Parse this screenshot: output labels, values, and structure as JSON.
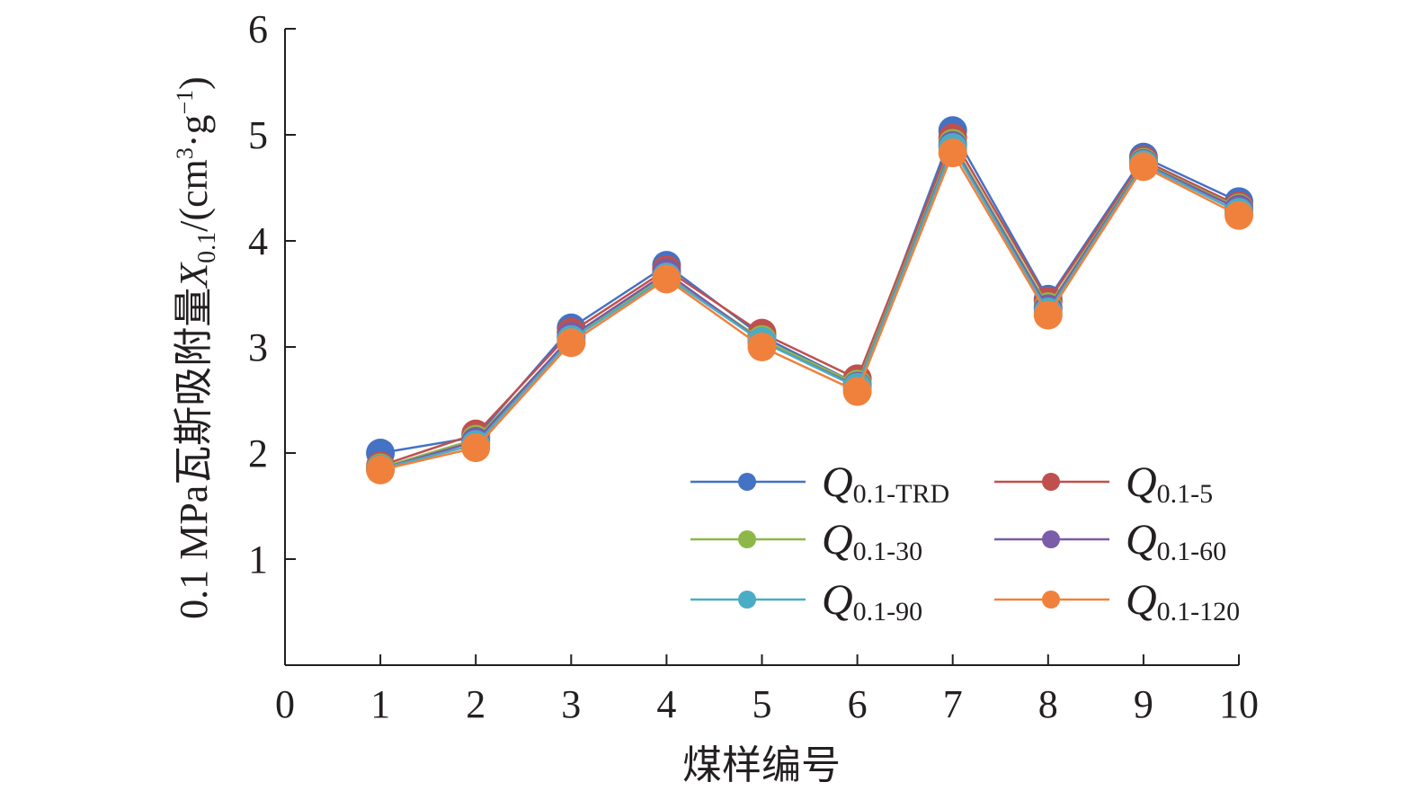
{
  "chart_data": {
    "type": "line",
    "ylabel_main": "0.1 MPa瓦斯吸附量",
    "ylabel_var": "X",
    "ylabel_sub": "0.1",
    "ylabel_unit_a": "/(cm",
    "ylabel_unit_sup3": "3",
    "ylabel_unit_b": "·g",
    "ylabel_unit_supneg": "−1",
    "ylabel_unit_c": ")",
    "xlabel": "煤样编号",
    "x": [
      1,
      2,
      3,
      4,
      5,
      6,
      7,
      8,
      9,
      10
    ],
    "x_ticks": [
      "0",
      "1",
      "2",
      "3",
      "4",
      "5",
      "6",
      "7",
      "8",
      "9",
      "10"
    ],
    "y_ticks": [
      "1",
      "2",
      "3",
      "4",
      "5",
      "6"
    ],
    "ylim": [
      0,
      6
    ],
    "grid": false,
    "legend_position": "bottom-right",
    "series": [
      {
        "name": "Q",
        "sub": "0.1-TRD",
        "color": "#4472c4",
        "values": [
          2.0,
          2.15,
          3.18,
          3.77,
          3.1,
          2.65,
          5.04,
          3.45,
          4.79,
          4.37
        ]
      },
      {
        "name": "Q",
        "sub": "0.1-5",
        "color": "#c0504d",
        "values": [
          1.88,
          2.18,
          3.14,
          3.73,
          3.13,
          2.7,
          4.97,
          3.43,
          4.76,
          4.33
        ]
      },
      {
        "name": "Q",
        "sub": "0.1-30",
        "color": "#8db849",
        "values": [
          1.86,
          2.13,
          3.09,
          3.68,
          3.07,
          2.65,
          4.92,
          3.38,
          4.74,
          4.31
        ]
      },
      {
        "name": "Q",
        "sub": "0.1-60",
        "color": "#7a5ca8",
        "values": [
          1.85,
          2.11,
          3.1,
          3.7,
          3.05,
          2.63,
          4.9,
          3.36,
          4.73,
          4.3
        ]
      },
      {
        "name": "Q",
        "sub": "0.1-90",
        "color": "#4bacc6",
        "values": [
          1.85,
          2.08,
          3.07,
          3.66,
          3.05,
          2.62,
          4.88,
          3.33,
          4.72,
          4.27
        ]
      },
      {
        "name": "Q",
        "sub": "0.1-120",
        "color": "#f0813c",
        "values": [
          1.84,
          2.05,
          3.04,
          3.64,
          3.0,
          2.58,
          4.83,
          3.3,
          4.7,
          4.24
        ]
      }
    ]
  }
}
